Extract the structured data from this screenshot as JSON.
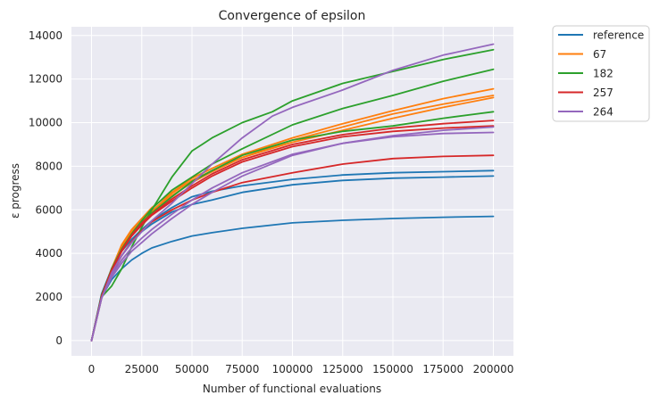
{
  "chart_data": {
    "type": "line",
    "title": "Convergence of epsilon",
    "xlabel": "Number of functional evaluations",
    "ylabel": "ε progress",
    "xlim": [
      -10000,
      210000
    ],
    "ylim": [
      -700,
      14400
    ],
    "xticks": [
      0,
      25000,
      50000,
      75000,
      100000,
      125000,
      150000,
      175000,
      200000
    ],
    "yticks": [
      0,
      2000,
      4000,
      6000,
      8000,
      10000,
      12000,
      14000
    ],
    "grid": true,
    "legend_position": "outside-top-right",
    "colors": {
      "reference": "#1f77b4",
      "67": "#ff7f0e",
      "182": "#2ca02c",
      "257": "#d62728",
      "264": "#9467bd",
      "plot_background": "#eaeaf2",
      "grid": "#ffffff"
    },
    "series": [
      {
        "name": "reference",
        "color": "#1f77b4",
        "lines": [
          {
            "x": [
              0,
              5000,
              10000,
              15000,
              20000,
              25000,
              30000,
              40000,
              50000,
              60000,
              75000,
              100000,
              125000,
              150000,
              175000,
              200000
            ],
            "y": [
              0,
              2000,
              2800,
              3300,
              3700,
              4000,
              4250,
              4550,
              4800,
              4950,
              5150,
              5400,
              5520,
              5600,
              5660,
              5700
            ]
          },
          {
            "x": [
              0,
              5000,
              10000,
              15000,
              20000,
              25000,
              30000,
              40000,
              50000,
              60000,
              75000,
              100000,
              125000,
              150000,
              175000,
              200000
            ],
            "y": [
              0,
              2100,
              3200,
              3900,
              4500,
              5000,
              5350,
              5900,
              6250,
              6450,
              6800,
              7150,
              7350,
              7450,
              7500,
              7550
            ]
          },
          {
            "x": [
              0,
              5000,
              10000,
              15000,
              20000,
              25000,
              30000,
              40000,
              50000,
              60000,
              75000,
              100000,
              125000,
              150000,
              175000,
              200000
            ],
            "y": [
              0,
              2150,
              3300,
              4100,
              4650,
              5100,
              5500,
              6100,
              6600,
              6850,
              7100,
              7400,
              7600,
              7700,
              7750,
              7800
            ]
          }
        ]
      },
      {
        "name": "67",
        "color": "#ff7f0e",
        "lines": [
          {
            "x": [
              0,
              5000,
              10000,
              15000,
              20000,
              25000,
              30000,
              40000,
              50000,
              60000,
              75000,
              100000,
              125000,
              150000,
              175000,
              200000
            ],
            "y": [
              0,
              2000,
              3300,
              4400,
              5100,
              5600,
              6100,
              6800,
              7450,
              7900,
              8550,
              9300,
              9950,
              10550,
              11100,
              11550
            ]
          },
          {
            "x": [
              0,
              5000,
              10000,
              15000,
              20000,
              25000,
              30000,
              40000,
              50000,
              60000,
              75000,
              100000,
              125000,
              150000,
              175000,
              200000
            ],
            "y": [
              0,
              1950,
              3300,
              4300,
              5000,
              5500,
              5950,
              6750,
              7350,
              7800,
              8400,
              9200,
              9800,
              10400,
              10850,
              11250
            ]
          },
          {
            "x": [
              0,
              5000,
              10000,
              15000,
              20000,
              25000,
              30000,
              40000,
              50000,
              60000,
              75000,
              100000,
              125000,
              150000,
              175000,
              200000
            ],
            "y": [
              0,
              1950,
              3250,
              4250,
              4950,
              5450,
              5900,
              6650,
              7250,
              7750,
              8400,
              9100,
              9650,
              10200,
              10700,
              11150
            ]
          }
        ]
      },
      {
        "name": "182",
        "color": "#2ca02c",
        "lines": [
          {
            "x": [
              0,
              5000,
              10000,
              15000,
              20000,
              25000,
              30000,
              40000,
              50000,
              55000,
              60000,
              75000,
              90000,
              100000,
              125000,
              150000,
              175000,
              200000
            ],
            "y": [
              0,
              2000,
              2500,
              3300,
              4300,
              5200,
              6000,
              7500,
              8700,
              9000,
              9300,
              10000,
              10500,
              11000,
              11800,
              12350,
              12900,
              13350
            ]
          },
          {
            "x": [
              0,
              5000,
              10000,
              15000,
              20000,
              25000,
              30000,
              40000,
              50000,
              60000,
              75000,
              100000,
              125000,
              150000,
              175000,
              200000
            ],
            "y": [
              0,
              2100,
              3200,
              4200,
              4900,
              5500,
              6050,
              6900,
              7500,
              8100,
              8800,
              9900,
              10650,
              11250,
              11900,
              12450
            ]
          },
          {
            "x": [
              0,
              5000,
              10000,
              15000,
              20000,
              25000,
              30000,
              40000,
              50000,
              60000,
              75000,
              100000,
              125000,
              150000,
              175000,
              200000
            ],
            "y": [
              0,
              2050,
              3300,
              4200,
              4850,
              5400,
              5850,
              6600,
              7300,
              7800,
              8500,
              9200,
              9600,
              9850,
              10200,
              10500
            ]
          }
        ]
      },
      {
        "name": "257",
        "color": "#d62728",
        "lines": [
          {
            "x": [
              0,
              5000,
              10000,
              15000,
              20000,
              25000,
              30000,
              40000,
              50000,
              60000,
              75000,
              100000,
              125000,
              150000,
              175000,
              200000
            ],
            "y": [
              0,
              2050,
              3250,
              4150,
              4850,
              5400,
              5800,
              6500,
              7100,
              7650,
              8300,
              9000,
              9450,
              9750,
              9950,
              10100
            ]
          },
          {
            "x": [
              0,
              5000,
              10000,
              15000,
              20000,
              25000,
              30000,
              40000,
              50000,
              60000,
              75000,
              100000,
              125000,
              150000,
              175000,
              200000
            ],
            "y": [
              0,
              2000,
              3200,
              4100,
              4800,
              5300,
              5750,
              6400,
              7000,
              7550,
              8200,
              8900,
              9350,
              9600,
              9750,
              9850
            ]
          },
          {
            "x": [
              0,
              5000,
              10000,
              15000,
              20000,
              25000,
              30000,
              40000,
              50000,
              60000,
              75000,
              100000,
              125000,
              150000,
              175000,
              200000
            ],
            "y": [
              0,
              2000,
              3050,
              3900,
              4550,
              5050,
              5450,
              6000,
              6450,
              6800,
              7250,
              7700,
              8100,
              8350,
              8450,
              8500
            ]
          }
        ]
      },
      {
        "name": "264",
        "color": "#9467bd",
        "lines": [
          {
            "x": [
              0,
              5000,
              10000,
              15000,
              20000,
              25000,
              30000,
              40000,
              50000,
              60000,
              75000,
              90000,
              100000,
              125000,
              150000,
              175000,
              200000
            ],
            "y": [
              0,
              1950,
              3100,
              3900,
              4500,
              5000,
              5500,
              6300,
              7200,
              8100,
              9300,
              10300,
              10700,
              11500,
              12400,
              13100,
              13600
            ]
          },
          {
            "x": [
              0,
              5000,
              10000,
              15000,
              20000,
              25000,
              30000,
              40000,
              50000,
              60000,
              75000,
              100000,
              125000,
              150000,
              175000,
              200000
            ],
            "y": [
              0,
              1950,
              2900,
              3550,
              4100,
              4500,
              4900,
              5600,
              6250,
              6800,
              7550,
              8500,
              9050,
              9350,
              9500,
              9550
            ]
          },
          {
            "x": [
              0,
              5000,
              10000,
              15000,
              20000,
              25000,
              30000,
              40000,
              50000,
              60000,
              75000,
              100000,
              125000,
              150000,
              175000,
              200000
            ],
            "y": [
              0,
              1950,
              3000,
              3700,
              4250,
              4700,
              5100,
              5800,
              6450,
              7000,
              7700,
              8550,
              9050,
              9400,
              9650,
              9800
            ]
          }
        ]
      }
    ]
  }
}
